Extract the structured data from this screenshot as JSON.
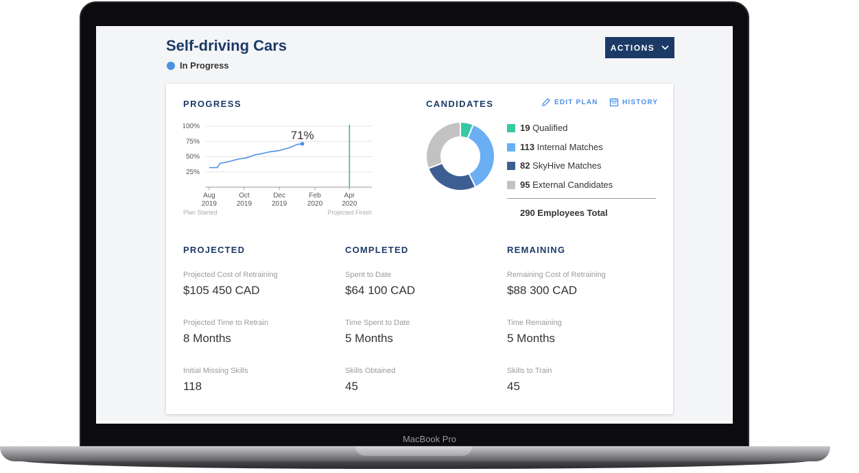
{
  "device": {
    "label": "MacBook Pro"
  },
  "header": {
    "title": "Self-driving Cars",
    "status": "In Progress",
    "actions_label": "ACTIONS"
  },
  "progress": {
    "heading": "PROGRESS",
    "percent_label": "71%",
    "y_ticks": [
      "100%",
      "75%",
      "50%",
      "25%"
    ],
    "x_ticks": [
      {
        "month": "Aug",
        "year": "2019"
      },
      {
        "month": "Oct",
        "year": "2019"
      },
      {
        "month": "Dec",
        "year": "2019"
      },
      {
        "month": "Feb",
        "year": "2020"
      },
      {
        "month": "Apr",
        "year": "2020"
      }
    ],
    "start_label": "Plan Started",
    "finish_label": "Projected Finish"
  },
  "chart_data": [
    {
      "type": "line",
      "title": "PROGRESS",
      "xlabel": "",
      "ylabel": "",
      "x": [
        "2019-08-01",
        "2019-08-15",
        "2019-08-20",
        "2019-09-05",
        "2019-09-20",
        "2019-10-05",
        "2019-10-20",
        "2019-11-01",
        "2019-11-15",
        "2019-12-01",
        "2019-12-20",
        "2020-01-01",
        "2020-01-10"
      ],
      "series": [
        {
          "values": [
            32,
            32,
            39,
            42,
            46,
            48,
            53,
            55,
            58,
            60,
            65,
            70,
            71
          ]
        }
      ],
      "ylim": [
        0,
        100
      ],
      "xlim": [
        "2019-07-25",
        "2020-05-10"
      ],
      "projected_finish": "2020-04-01",
      "grid": true,
      "color": "#4a8fe4",
      "marker_color": "#2bb5a0"
    },
    {
      "type": "pie",
      "title": "CANDIDATES",
      "categories": [
        "Qualified",
        "Internal Matches",
        "SkyHive Matches",
        "External Candidates"
      ],
      "values": [
        19,
        113,
        82,
        95
      ],
      "colors": [
        "#38c8a4",
        "#6aaef4",
        "#3d5e90",
        "#c2c2c2"
      ],
      "donut": true
    }
  ],
  "candidates": {
    "heading": "CANDIDATES",
    "edit_plan_label": "EDIT PLAN",
    "history_label": "HISTORY",
    "legend": [
      {
        "count": "19",
        "label": "Qualified",
        "color": "#38c8a4"
      },
      {
        "count": "113",
        "label": "Internal Matches",
        "color": "#6aaef4"
      },
      {
        "count": "82",
        "label": "SkyHive Matches",
        "color": "#3d5e90"
      },
      {
        "count": "95",
        "label": "External Candidates",
        "color": "#c2c2c2"
      }
    ],
    "total": "290 Employees Total"
  },
  "projected": {
    "heading": "PROJECTED",
    "items": [
      {
        "label": "Projected Cost of Retraining",
        "value": "$105 450 CAD"
      },
      {
        "label": "Projected Time to Retrain",
        "value": "8 Months"
      },
      {
        "label": "Initial Missing Skills",
        "value": "118"
      }
    ]
  },
  "completed": {
    "heading": "COMPLETED",
    "items": [
      {
        "label": "Spent to Date",
        "value": "$64 100 CAD"
      },
      {
        "label": "Time Spent to Date",
        "value": "5 Months"
      },
      {
        "label": "Skills Obtained",
        "value": "45"
      }
    ]
  },
  "remaining": {
    "heading": "REMAINING",
    "items": [
      {
        "label": "Remaining Cost of Retraining",
        "value": "$88 300 CAD"
      },
      {
        "label": "Time Remaining",
        "value": "5 Months"
      },
      {
        "label": "Skills to Train",
        "value": "45"
      }
    ]
  }
}
